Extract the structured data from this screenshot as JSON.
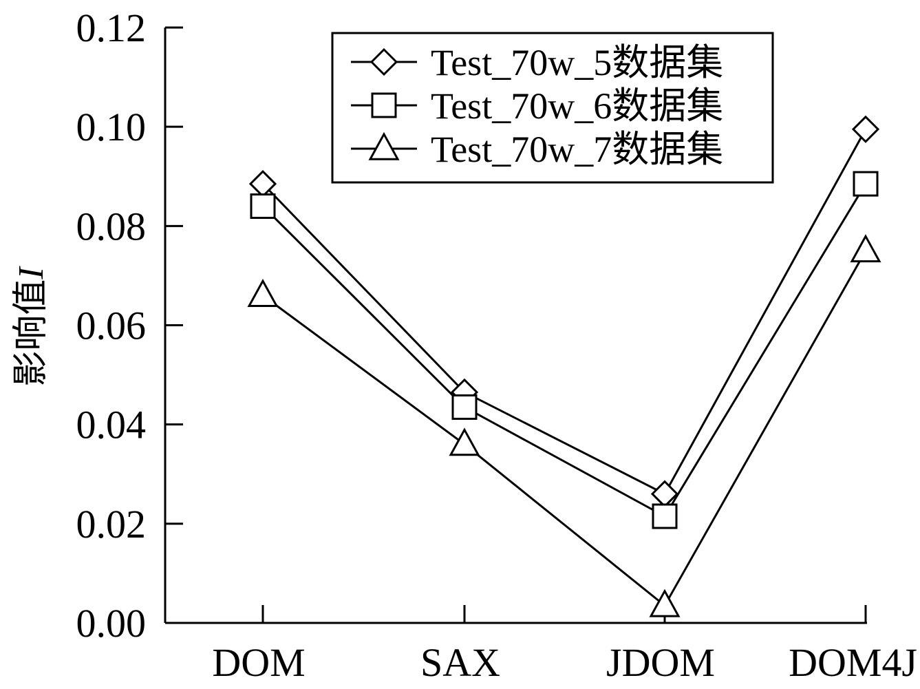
{
  "chart_data": {
    "type": "line",
    "categories": [
      "DOM",
      "SAX",
      "JDOM",
      "DOM4J"
    ],
    "ylabel": "影响值",
    "ylabel_italic": "I",
    "ylim": [
      0,
      0.12
    ],
    "yticks": [
      "0.00",
      "0.02",
      "0.04",
      "0.06",
      "0.08",
      "0.10",
      "0.12"
    ],
    "grid": false,
    "legend_position": "top-center",
    "series": [
      {
        "name": "Test_70w_5数据集",
        "marker": "diamond",
        "values": [
          0.0885,
          0.0465,
          0.026,
          0.0995
        ]
      },
      {
        "name": "Test_70w_6数据集",
        "marker": "square",
        "values": [
          0.084,
          0.0435,
          0.0215,
          0.0885
        ]
      },
      {
        "name": "Test_70w_7数据集",
        "marker": "triangle",
        "values": [
          0.066,
          0.036,
          0.0035,
          0.075
        ]
      }
    ],
    "colors": {
      "line": "#000000",
      "marker_fill": "#ffffff"
    }
  }
}
